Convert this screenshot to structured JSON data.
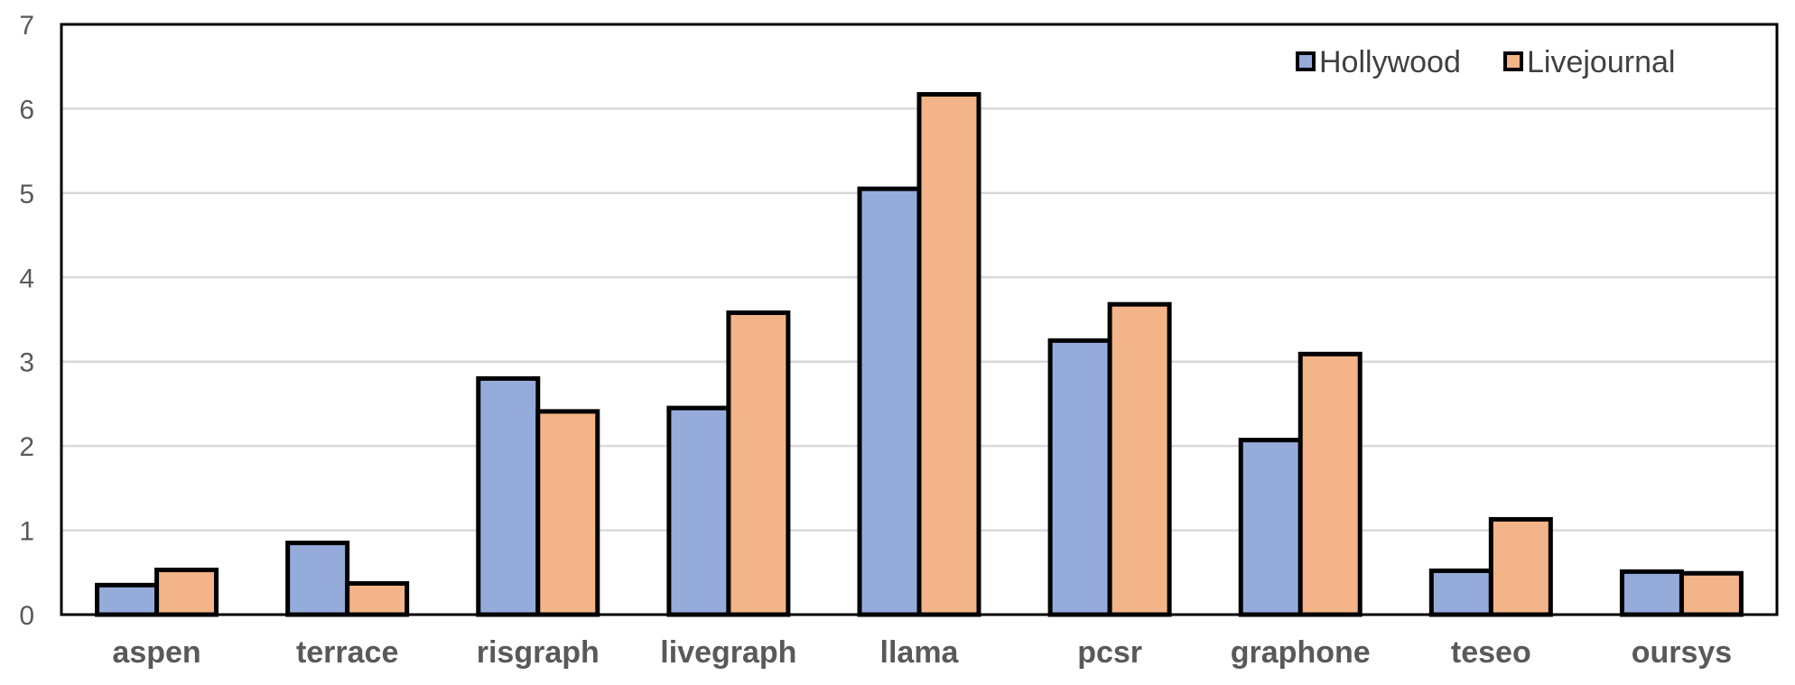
{
  "chart_data": {
    "type": "bar",
    "title": "",
    "xlabel": "",
    "ylabel": "",
    "ylim": [
      0,
      7
    ],
    "yticks": [
      0,
      1,
      2,
      3,
      4,
      5,
      6,
      7
    ],
    "grid": true,
    "legend_position": "top-right",
    "categories": [
      "aspen",
      "terrace",
      "risgraph",
      "livegraph",
      "llama",
      "pcsr",
      "graphone",
      "teseo",
      "oursys"
    ],
    "series": [
      {
        "name": "Hollywood",
        "color": "#95acdb",
        "values": [
          0.35,
          0.85,
          2.8,
          2.45,
          5.05,
          3.25,
          2.07,
          0.52,
          0.51
        ]
      },
      {
        "name": "Livejournal",
        "color": "#f2b488",
        "values": [
          0.53,
          0.37,
          2.41,
          3.58,
          6.17,
          3.68,
          3.09,
          1.13,
          0.49
        ]
      }
    ]
  }
}
